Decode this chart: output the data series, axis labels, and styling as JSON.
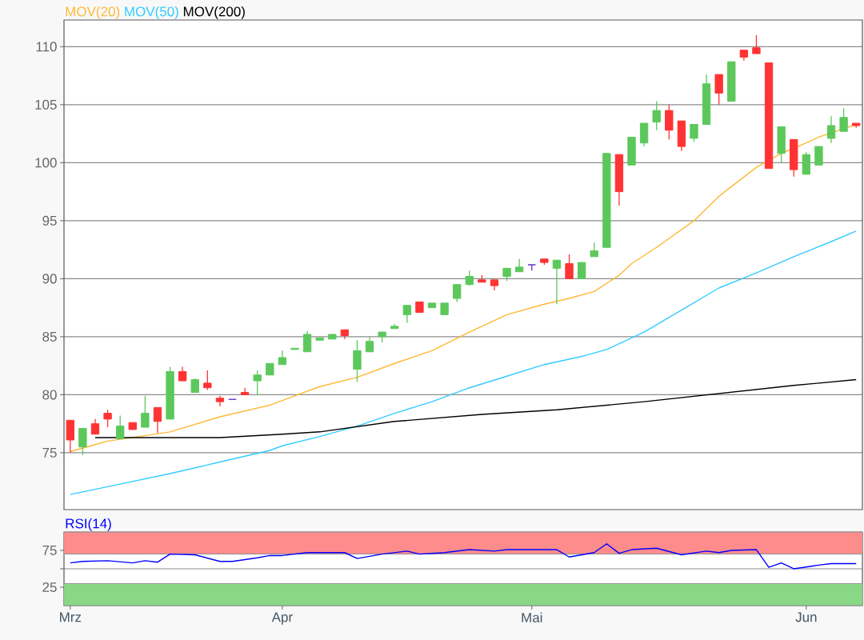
{
  "chart_data": [
    {
      "type": "candlestick",
      "categories": [
        null,
        null,
        null,
        null,
        null,
        null,
        null,
        null,
        null,
        null,
        null,
        null,
        null,
        null,
        null,
        null,
        null,
        null,
        null,
        null,
        null,
        null,
        null,
        null,
        null,
        null,
        null,
        null,
        null,
        null,
        null,
        null,
        null,
        null,
        null,
        null,
        null,
        null,
        null,
        null,
        null,
        null,
        null,
        null,
        null,
        null,
        null,
        null,
        null,
        null,
        null,
        null,
        null,
        null,
        null,
        null,
        null,
        null,
        null,
        null,
        null,
        null,
        null,
        null
      ],
      "ylim": [
        70.1,
        112.3
      ],
      "yticks": [
        75,
        80,
        85,
        90,
        95,
        100,
        105,
        110
      ],
      "grid": "y",
      "legend": "top left",
      "tick_labels": "y",
      "series": [
        {
          "type": "candlestick",
          "ohlc": [
            [
              77.8,
              77.8,
              75.0,
              76.1
            ],
            [
              75.5,
              77.1,
              74.8,
              77.1
            ],
            [
              77.5,
              77.9,
              76.6,
              76.6
            ],
            [
              78.4,
              78.7,
              77.2,
              77.9
            ],
            [
              76.2,
              78.2,
              76.2,
              77.3
            ],
            [
              77.6,
              77.6,
              77.0,
              77.0
            ],
            [
              77.2,
              79.9,
              77.2,
              78.4
            ],
            [
              78.9,
              78.9,
              76.7,
              77.7
            ],
            [
              77.9,
              82.4,
              77.9,
              82.0
            ],
            [
              82.0,
              82.4,
              81.2,
              81.2
            ],
            [
              80.2,
              81.4,
              80.2,
              81.3
            ],
            [
              81.0,
              82.1,
              80.4,
              80.6
            ],
            [
              79.7,
              79.9,
              79.0,
              79.4
            ],
            [
              79.6,
              79.6,
              79.6,
              79.6
            ],
            [
              80.2,
              80.6,
              80.0,
              80.0
            ],
            [
              81.2,
              82.1,
              80.0,
              81.7
            ],
            [
              81.7,
              82.7,
              81.7,
              82.7
            ],
            [
              82.6,
              83.8,
              82.6,
              83.2
            ],
            [
              83.9,
              84.0,
              83.9,
              84.0
            ],
            [
              83.7,
              85.5,
              83.7,
              85.2
            ],
            [
              84.7,
              84.9,
              84.7,
              84.9
            ],
            [
              84.8,
              85.2,
              84.8,
              85.2
            ],
            [
              85.6,
              85.6,
              84.8,
              85.1
            ],
            [
              82.2,
              84.7,
              81.1,
              83.8
            ],
            [
              83.7,
              85.0,
              83.7,
              84.6
            ],
            [
              85.0,
              85.4,
              84.5,
              85.4
            ],
            [
              85.7,
              86.1,
              85.7,
              85.9
            ],
            [
              86.9,
              87.7,
              86.2,
              87.7
            ],
            [
              88.0,
              88.0,
              87.1,
              87.1
            ],
            [
              87.5,
              87.9,
              87.5,
              87.9
            ],
            [
              86.9,
              87.9,
              86.9,
              87.9
            ],
            [
              88.3,
              89.5,
              88.0,
              89.5
            ],
            [
              89.5,
              90.7,
              89.4,
              90.2
            ],
            [
              89.9,
              90.3,
              89.7,
              89.7
            ],
            [
              89.9,
              89.9,
              89.0,
              89.4
            ],
            [
              90.2,
              90.9,
              89.8,
              90.9
            ],
            [
              90.6,
              91.7,
              90.6,
              91.0
            ],
            [
              91.2,
              91.2,
              90.7,
              91.2
            ],
            [
              91.7,
              91.7,
              91.2,
              91.4
            ],
            [
              90.9,
              91.6,
              87.8,
              91.6
            ],
            [
              91.3,
              92.1,
              90.0,
              90.0
            ],
            [
              90.0,
              91.4,
              90.0,
              91.4
            ],
            [
              91.9,
              93.1,
              91.9,
              92.4
            ],
            [
              92.7,
              100.8,
              92.7,
              100.8
            ],
            [
              100.7,
              100.7,
              96.3,
              97.5
            ],
            [
              99.8,
              102.2,
              99.8,
              102.2
            ],
            [
              101.7,
              103.4,
              101.4,
              103.4
            ],
            [
              103.5,
              105.3,
              102.8,
              104.5
            ],
            [
              104.5,
              105.0,
              102.0,
              102.8
            ],
            [
              103.6,
              103.6,
              101.0,
              101.4
            ],
            [
              102.1,
              103.3,
              101.8,
              103.3
            ],
            [
              103.3,
              107.6,
              103.3,
              106.8
            ],
            [
              107.6,
              107.6,
              105.0,
              106.0
            ],
            [
              105.3,
              108.7,
              105.3,
              108.7
            ],
            [
              109.7,
              109.7,
              108.8,
              109.1
            ],
            [
              109.9,
              111.0,
              109.4,
              109.4
            ],
            [
              108.6,
              108.6,
              99.5,
              99.5
            ],
            [
              100.8,
              103.1,
              100.0,
              103.1
            ],
            [
              102.0,
              102.0,
              98.8,
              99.4
            ],
            [
              99.0,
              100.9,
              99.0,
              100.7
            ],
            [
              99.8,
              101.4,
              99.8,
              101.4
            ],
            [
              102.1,
              104.0,
              101.7,
              103.2
            ],
            [
              102.7,
              104.7,
              102.7,
              103.9
            ],
            [
              103.4,
              103.4,
              103.0,
              103.2
            ]
          ],
          "colors": [
            "#ff3333",
            "#5cc85c",
            "#ff3333",
            "#ff3333",
            "#5cc85c",
            "#ff3333",
            "#5cc85c",
            "#ff3333",
            "#5cc85c",
            "#ff3333",
            "#5cc85c",
            "#ff3333",
            "#ff3333",
            "#6633cc",
            "#ff3333",
            "#5cc85c",
            "#5cc85c",
            "#5cc85c",
            "#5cc85c",
            "#5cc85c",
            "#5cc85c",
            "#5cc85c",
            "#ff3333",
            "#5cc85c",
            "#5cc85c",
            "#5cc85c",
            "#5cc85c",
            "#5cc85c",
            "#ff3333",
            "#5cc85c",
            "#5cc85c",
            "#5cc85c",
            "#5cc85c",
            "#ff3333",
            "#ff3333",
            "#5cc85c",
            "#5cc85c",
            "#6633cc",
            "#ff3333",
            "#5cc85c",
            "#ff3333",
            "#5cc85c",
            "#5cc85c",
            "#5cc85c",
            "#ff3333",
            "#5cc85c",
            "#5cc85c",
            "#5cc85c",
            "#ff3333",
            "#ff3333",
            "#5cc85c",
            "#5cc85c",
            "#ff3333",
            "#5cc85c",
            "#ff3333",
            "#ff3333",
            "#ff3333",
            "#5cc85c",
            "#ff3333",
            "#5cc85c",
            "#5cc85c",
            "#5cc85c",
            "#5cc85c",
            "#ff3333"
          ]
        },
        {
          "type": "line",
          "name": "MOV(20)",
          "color": "#ffb833",
          "values": [
            75.1,
            null,
            75.7,
            76.0,
            null,
            null,
            null,
            null,
            76.8,
            null,
            null,
            null,
            78.1,
            null,
            null,
            null,
            79.1,
            79.5,
            null,
            null,
            80.7,
            null,
            null,
            81.5,
            null,
            null,
            82.7,
            null,
            null,
            83.8,
            null,
            null,
            85.4,
            null,
            null,
            86.9,
            null,
            null,
            87.8,
            null,
            88.3,
            null,
            88.9,
            null,
            90.3,
            91.3,
            null,
            92.7,
            null,
            null,
            95.0,
            null,
            97.1,
            null,
            null,
            99.6,
            null,
            100.8,
            null,
            101.7,
            102.2,
            null,
            null,
            103.3
          ]
        },
        {
          "type": "line",
          "name": "MOV(50)",
          "color": "#33ccff",
          "values": [
            71.4,
            null,
            null,
            null,
            72.3,
            null,
            null,
            null,
            73.2,
            null,
            null,
            null,
            74.2,
            null,
            null,
            null,
            75.2,
            75.6,
            null,
            null,
            76.4,
            null,
            null,
            77.3,
            null,
            null,
            78.4,
            null,
            null,
            79.4,
            null,
            null,
            80.6,
            null,
            null,
            81.6,
            null,
            null,
            82.6,
            null,
            null,
            83.3,
            null,
            83.9,
            null,
            null,
            85.4,
            null,
            null,
            87.3,
            null,
            null,
            89.2,
            null,
            null,
            90.5,
            null,
            null,
            91.9,
            null,
            null,
            93.2,
            null,
            94.1
          ]
        },
        {
          "type": "line",
          "name": "MOV(200)",
          "color": "#000000",
          "values": [
            null,
            null,
            76.3,
            null,
            null,
            null,
            null,
            null,
            null,
            null,
            null,
            null,
            76.3,
            null,
            null,
            null,
            null,
            76.6,
            null,
            null,
            76.8,
            null,
            null,
            null,
            null,
            null,
            77.7,
            null,
            null,
            null,
            null,
            null,
            null,
            78.3,
            null,
            null,
            null,
            null,
            null,
            78.7,
            null,
            null,
            null,
            null,
            null,
            null,
            79.4,
            null,
            null,
            null,
            null,
            null,
            80.1,
            null,
            null,
            null,
            null,
            null,
            80.8,
            null,
            null,
            null,
            null,
            81.3
          ]
        }
      ]
    },
    {
      "type": "line",
      "categories": [
        "Mrz",
        null,
        null,
        null,
        null,
        null,
        null,
        null,
        null,
        null,
        null,
        null,
        null,
        null,
        null,
        null,
        null,
        "Apr",
        null,
        null,
        null,
        null,
        null,
        null,
        null,
        null,
        null,
        null,
        null,
        null,
        null,
        null,
        null,
        null,
        null,
        null,
        null,
        "Mai",
        null,
        null,
        null,
        null,
        null,
        null,
        null,
        null,
        null,
        null,
        null,
        null,
        null,
        null,
        null,
        null,
        null,
        null,
        null,
        null,
        null,
        "Jun",
        null,
        null,
        null,
        null
      ],
      "ylim": [
        0,
        100
      ],
      "yticks": [
        25,
        {
          "value": 50,
          "label": null
        },
        75
      ],
      "grid": "y",
      "legend": "top left",
      "bands": [
        {
          "axis": "y",
          "from": 70,
          "to": 100,
          "color": "#ff8c8c"
        },
        {
          "axis": "y",
          "from": 0,
          "to": 30,
          "color": "#88d888"
        }
      ],
      "series": [
        {
          "name": "RSI(14)",
          "color": "#0000ff",
          "values": [
            58,
            60,
            null,
            61,
            null,
            58,
            61,
            59,
            70,
            null,
            69,
            null,
            60,
            60,
            null,
            65,
            68,
            68,
            null,
            72,
            null,
            null,
            72,
            64,
            null,
            70,
            null,
            74,
            70,
            null,
            72,
            null,
            76,
            null,
            74,
            76,
            null,
            null,
            null,
            76,
            66,
            null,
            72,
            84,
            71,
            76,
            null,
            78,
            null,
            69,
            null,
            74,
            72,
            75,
            null,
            76,
            52,
            58,
            50,
            null,
            55,
            57,
            null,
            57
          ]
        }
      ]
    }
  ]
}
